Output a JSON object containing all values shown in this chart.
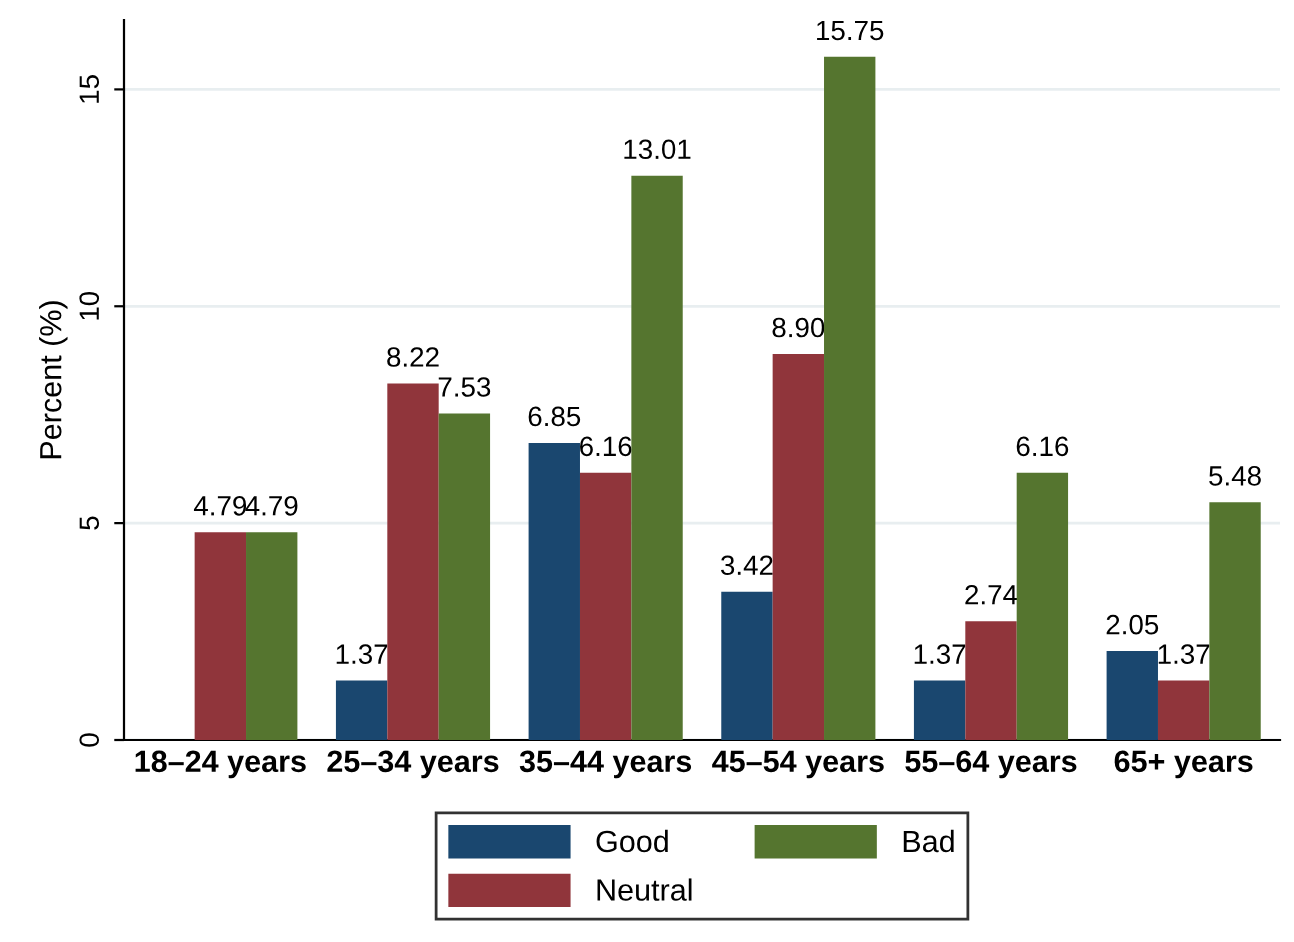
{
  "chart_data": {
    "type": "bar",
    "ylabel": "Percent (%)",
    "categories": [
      "18–24 years",
      "25–34 years",
      "35–44 years",
      "45–54 years",
      "55–64 years",
      "65+ years"
    ],
    "series": [
      {
        "name": "Good",
        "color": "#1a476f",
        "values": [
          null,
          1.37,
          6.85,
          3.42,
          1.37,
          2.05
        ],
        "value_labels": [
          null,
          "1.37",
          "6.85",
          "3.42",
          "1.37",
          "2.05"
        ]
      },
      {
        "name": "Neutral",
        "color": "#90353b",
        "values": [
          4.79,
          8.22,
          6.16,
          8.9,
          2.74,
          1.37
        ],
        "value_labels": [
          "4.79",
          "8.22",
          "6.16",
          "8.90",
          "2.74",
          "1.37"
        ]
      },
      {
        "name": "Bad",
        "color": "#55752f",
        "values": [
          4.79,
          7.53,
          13.01,
          15.75,
          6.16,
          5.48
        ],
        "value_labels": [
          "4.79",
          "7.53",
          "13.01",
          "15.75",
          "6.16",
          "5.48"
        ]
      }
    ],
    "ylim": [
      0,
      16.6
    ],
    "yticks": [
      0,
      5,
      10,
      15
    ],
    "grid": "y",
    "legend": "bottom"
  }
}
